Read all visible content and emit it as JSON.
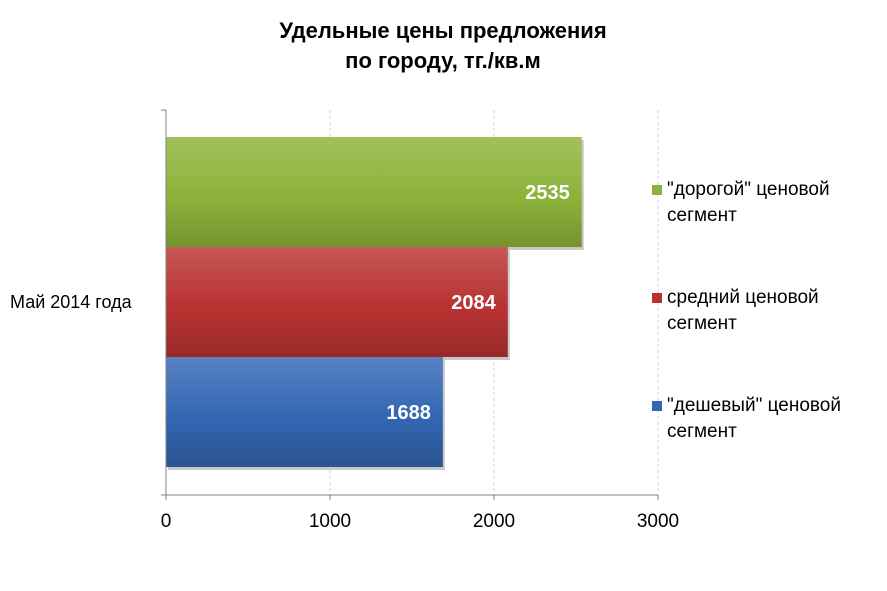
{
  "chart_data": {
    "type": "bar",
    "orientation": "horizontal",
    "title_lines": [
      "Удельные цены предложения",
      "по городу, тг./кв.м"
    ],
    "categories": [
      "Май 2014 года"
    ],
    "series": [
      {
        "name": "\"дорогой\" ценовой сегмент",
        "legend_lines": [
          "\"дорогой\" ценовой",
          "сегмент"
        ],
        "values": [
          2535
        ],
        "color": "#8db33a"
      },
      {
        "name": "средний ценовой сегмент",
        "legend_lines": [
          "средний ценовой",
          "сегмент"
        ],
        "values": [
          2084
        ],
        "color": "#b93232"
      },
      {
        "name": "\"дешевый\" ценовой сегмент",
        "legend_lines": [
          "\"дешевый\" ценовой",
          "сегмент"
        ],
        "values": [
          1688
        ],
        "color": "#3366b3"
      }
    ],
    "xlim": [
      0,
      3000
    ],
    "xticks": [
      "0",
      "1000",
      "2000",
      "3000"
    ],
    "grid": true,
    "legend_position": "right",
    "data_labels": true
  }
}
